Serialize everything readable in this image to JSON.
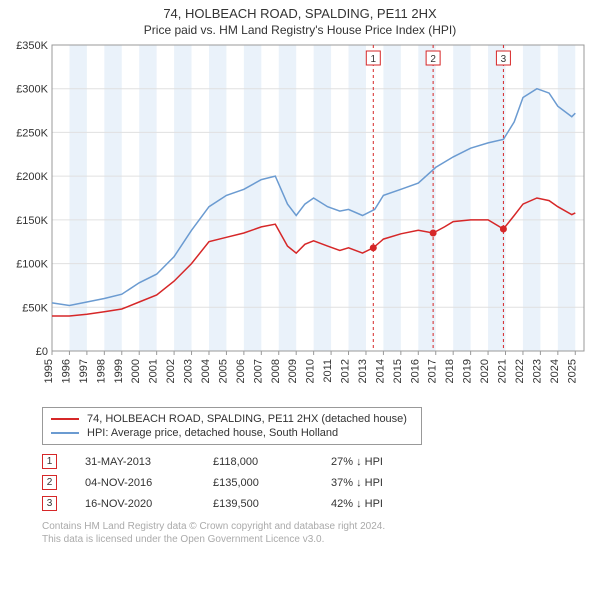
{
  "header": {
    "title": "74, HOLBEACH ROAD, SPALDING, PE11 2HX",
    "subtitle": "Price paid vs. HM Land Registry's House Price Index (HPI)"
  },
  "chart": {
    "type": "line",
    "background_color": "#ffffff",
    "plot_border_color": "#999999",
    "grid_color": "#e0e0e0",
    "band_color": "#eaf2fa",
    "xlim": [
      1995,
      2025.5
    ],
    "ylim": [
      0,
      350000
    ],
    "ytick_step": 50000,
    "ytick_labels": [
      "£0",
      "£50K",
      "£100K",
      "£150K",
      "£200K",
      "£250K",
      "£300K",
      "£350K"
    ],
    "xtick_years": [
      1995,
      1996,
      1997,
      1998,
      1999,
      2000,
      2001,
      2002,
      2003,
      2004,
      2005,
      2006,
      2007,
      2008,
      2009,
      2010,
      2011,
      2012,
      2013,
      2014,
      2015,
      2016,
      2017,
      2018,
      2019,
      2020,
      2021,
      2022,
      2023,
      2024,
      2025
    ],
    "series": [
      {
        "name": "property",
        "label": "74, HOLBEACH ROAD, SPALDING, PE11 2HX (detached house)",
        "color": "#d62728",
        "width": 1.5,
        "points": [
          [
            1995,
            40000
          ],
          [
            1996,
            40000
          ],
          [
            1997,
            42000
          ],
          [
            1998,
            45000
          ],
          [
            1999,
            48000
          ],
          [
            2000,
            56000
          ],
          [
            2001,
            64000
          ],
          [
            2002,
            80000
          ],
          [
            2003,
            100000
          ],
          [
            2004,
            125000
          ],
          [
            2005,
            130000
          ],
          [
            2006,
            135000
          ],
          [
            2007,
            142000
          ],
          [
            2007.8,
            145000
          ],
          [
            2008.5,
            120000
          ],
          [
            2009,
            112000
          ],
          [
            2009.5,
            122000
          ],
          [
            2010,
            126000
          ],
          [
            2010.8,
            120000
          ],
          [
            2011.5,
            115000
          ],
          [
            2012,
            118000
          ],
          [
            2012.8,
            112000
          ],
          [
            2013.42,
            118000
          ],
          [
            2014,
            128000
          ],
          [
            2015,
            134000
          ],
          [
            2016,
            138000
          ],
          [
            2016.85,
            135000
          ],
          [
            2017.5,
            142000
          ],
          [
            2018,
            148000
          ],
          [
            2019,
            150000
          ],
          [
            2020,
            150000
          ],
          [
            2020.88,
            139500
          ],
          [
            2021.5,
            155000
          ],
          [
            2022,
            168000
          ],
          [
            2022.8,
            175000
          ],
          [
            2023.5,
            172000
          ],
          [
            2024,
            165000
          ],
          [
            2024.8,
            156000
          ],
          [
            2025,
            158000
          ]
        ]
      },
      {
        "name": "hpi",
        "label": "HPI: Average price, detached house, South Holland",
        "color": "#6b9bd1",
        "width": 1.5,
        "points": [
          [
            1995,
            55000
          ],
          [
            1996,
            52000
          ],
          [
            1997,
            56000
          ],
          [
            1998,
            60000
          ],
          [
            1999,
            65000
          ],
          [
            2000,
            78000
          ],
          [
            2001,
            88000
          ],
          [
            2002,
            108000
          ],
          [
            2003,
            138000
          ],
          [
            2004,
            165000
          ],
          [
            2005,
            178000
          ],
          [
            2006,
            185000
          ],
          [
            2007,
            196000
          ],
          [
            2007.8,
            200000
          ],
          [
            2008.5,
            168000
          ],
          [
            2009,
            155000
          ],
          [
            2009.5,
            168000
          ],
          [
            2010,
            175000
          ],
          [
            2010.8,
            165000
          ],
          [
            2011.5,
            160000
          ],
          [
            2012,
            162000
          ],
          [
            2012.8,
            155000
          ],
          [
            2013.5,
            162000
          ],
          [
            2014,
            178000
          ],
          [
            2015,
            185000
          ],
          [
            2016,
            192000
          ],
          [
            2017,
            210000
          ],
          [
            2018,
            222000
          ],
          [
            2019,
            232000
          ],
          [
            2020,
            238000
          ],
          [
            2020.88,
            242000
          ],
          [
            2021.5,
            262000
          ],
          [
            2022,
            290000
          ],
          [
            2022.8,
            300000
          ],
          [
            2023.5,
            295000
          ],
          [
            2024,
            280000
          ],
          [
            2024.8,
            268000
          ],
          [
            2025,
            272000
          ]
        ]
      }
    ],
    "event_markers": [
      {
        "n": "1",
        "x": 2013.42,
        "y": 118000,
        "line_color": "#d62728",
        "box_border": "#d62728",
        "box_text": "#333"
      },
      {
        "n": "2",
        "x": 2016.85,
        "y": 135000,
        "line_color": "#d62728",
        "box_border": "#d62728",
        "box_text": "#333"
      },
      {
        "n": "3",
        "x": 2020.88,
        "y": 139500,
        "line_color": "#d62728",
        "box_border": "#d62728",
        "box_text": "#333"
      }
    ],
    "event_marker_point_color": "#d62728",
    "alt_band_years": [
      [
        1996,
        1997
      ],
      [
        1998,
        1999
      ],
      [
        2000,
        2001
      ],
      [
        2002,
        2003
      ],
      [
        2004,
        2005
      ],
      [
        2006,
        2007
      ],
      [
        2008,
        2009
      ],
      [
        2010,
        2011
      ],
      [
        2012,
        2013
      ],
      [
        2014,
        2015
      ],
      [
        2016,
        2017
      ],
      [
        2018,
        2019
      ],
      [
        2020,
        2021
      ],
      [
        2022,
        2023
      ],
      [
        2024,
        2025
      ]
    ]
  },
  "legend": {
    "rows": [
      {
        "color": "#d62728",
        "label": "74, HOLBEACH ROAD, SPALDING, PE11 2HX (detached house)"
      },
      {
        "color": "#6b9bd1",
        "label": "HPI: Average price, detached house, South Holland"
      }
    ]
  },
  "events_table": {
    "rows": [
      {
        "n": "1",
        "date": "31-MAY-2013",
        "price": "£118,000",
        "hpi": "27% ↓ HPI",
        "border": "#d62728"
      },
      {
        "n": "2",
        "date": "04-NOV-2016",
        "price": "£135,000",
        "hpi": "37% ↓ HPI",
        "border": "#d62728"
      },
      {
        "n": "3",
        "date": "16-NOV-2020",
        "price": "£139,500",
        "hpi": "42% ↓ HPI",
        "border": "#d62728"
      }
    ]
  },
  "attribution": {
    "line1": "Contains HM Land Registry data © Crown copyright and database right 2024.",
    "line2": "This data is licensed under the Open Government Licence v3.0."
  }
}
